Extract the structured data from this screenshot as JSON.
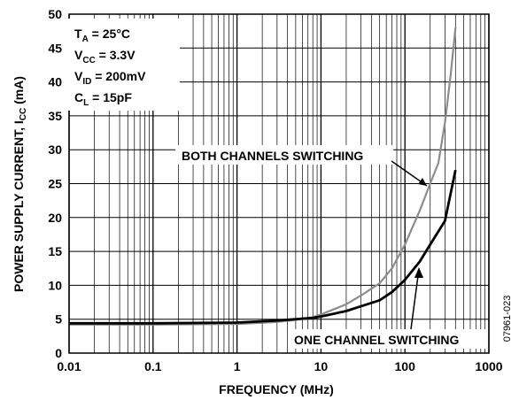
{
  "chart_data": {
    "type": "line",
    "xscale": "log",
    "xlim": [
      0.01,
      1000
    ],
    "ylim": [
      0,
      50
    ],
    "grid": true,
    "xlabel": "FREQUENCY (MHz)",
    "ylabel": "POWER SUPPLY CURRENT, I_CC (mA)",
    "x_ticks": [
      "0.01",
      "0.1",
      "1",
      "10",
      "100",
      "1000"
    ],
    "y_ticks": [
      "0",
      "5",
      "10",
      "15",
      "20",
      "25",
      "30",
      "35",
      "40",
      "45",
      "50"
    ],
    "conditions": [
      {
        "main": "T",
        "sub": "A",
        "rest": " = 25°C"
      },
      {
        "main": "V",
        "sub": "CC",
        "rest": " = 3.3V"
      },
      {
        "main": "V",
        "sub": "ID",
        "rest": " = 200mV"
      },
      {
        "main": "C",
        "sub": "L",
        "rest": " = 15pF"
      }
    ],
    "series": [
      {
        "name": "BOTH CHANNELS SWITCHING",
        "color": "#8c8c8c",
        "points": [
          [
            0.01,
            4.2
          ],
          [
            0.1,
            4.2
          ],
          [
            1,
            4.3
          ],
          [
            3,
            4.6
          ],
          [
            5,
            4.9
          ],
          [
            8,
            5.3
          ],
          [
            10,
            5.7
          ],
          [
            20,
            7.2
          ],
          [
            30,
            8.5
          ],
          [
            50,
            10.3
          ],
          [
            70,
            12.5
          ],
          [
            100,
            16.0
          ],
          [
            150,
            21.0
          ],
          [
            200,
            25.0
          ],
          [
            250,
            28.0
          ],
          [
            300,
            34.0
          ],
          [
            350,
            41.0
          ],
          [
            400,
            48.0
          ]
        ]
      },
      {
        "name": "ONE CHANNEL SWITCHING",
        "color": "#000000",
        "points": [
          [
            0.01,
            4.4
          ],
          [
            0.1,
            4.4
          ],
          [
            1,
            4.5
          ],
          [
            3,
            4.8
          ],
          [
            5,
            5.0
          ],
          [
            8,
            5.2
          ],
          [
            10,
            5.4
          ],
          [
            20,
            6.2
          ],
          [
            30,
            6.9
          ],
          [
            50,
            7.8
          ],
          [
            70,
            9.0
          ],
          [
            100,
            10.8
          ],
          [
            150,
            13.5
          ],
          [
            200,
            16.0
          ],
          [
            300,
            19.5
          ],
          [
            400,
            27.0
          ]
        ]
      }
    ],
    "annotations": [
      {
        "text": "BOTH CHANNELS SWITCHING",
        "series": 0
      },
      {
        "text": "ONE CHANNEL SWITCHING",
        "series": 1
      }
    ],
    "side_label": "07961-023"
  }
}
